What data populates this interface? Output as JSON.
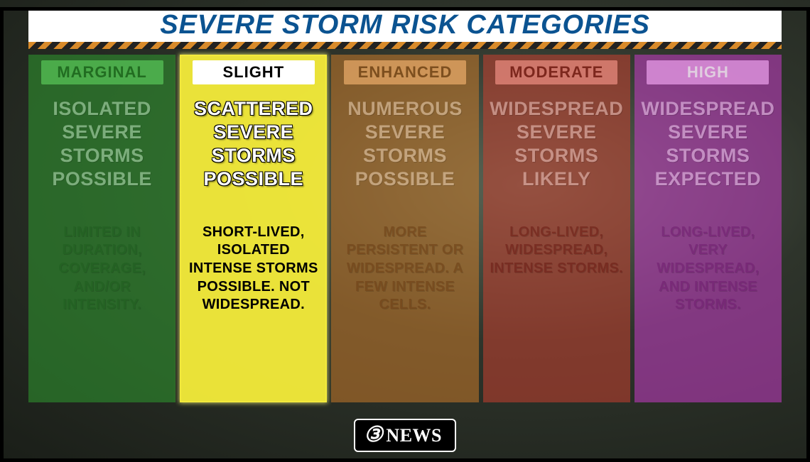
{
  "title": "SEVERE STORM RISK CATEGORIES",
  "highlighted_index": 1,
  "brand": {
    "icon": "③",
    "text": "NEWS"
  },
  "colors": {
    "title_color": "#0b5391",
    "stripe_a": "#d88a2a",
    "stripe_b": "#222222",
    "background_center": "#5a6555",
    "background_edge": "#1a1e18"
  },
  "categories": [
    {
      "name": "MARGINAL",
      "column_color": "#2f9a2f",
      "column_opacity": 0.55,
      "tab_bg": "#56c256",
      "tab_text_color": "#1f6f1f",
      "headline": "ISOLATED SEVERE STORMS POSSIBLE",
      "headline_color": "#bfe6bf",
      "desc": "LIMITED IN DURATION, COVERAGE, AND/OR INTENSITY.",
      "desc_color": "#1f5e1f",
      "highlighted": false
    },
    {
      "name": "SLIGHT",
      "column_color": "#f4ec3a",
      "column_opacity": 0.95,
      "tab_bg": "#ffffff",
      "tab_text_color": "#000000",
      "headline": "SCATTERED SEVERE STORMS POSSIBLE",
      "headline_color": "#ffffff",
      "desc": "SHORT-LIVED, ISOLATED INTENSE STORMS POSSIBLE. NOT WIDESPREAD.",
      "desc_color": "#000000",
      "highlighted": true
    },
    {
      "name": "ENHANCED",
      "column_color": "#c87a2a",
      "column_opacity": 0.55,
      "tab_bg": "#e6a867",
      "tab_text_color": "#7a4a1a",
      "headline": "NUMEROUS SEVERE STORMS POSSIBLE",
      "headline_color": "#f0d6b9",
      "desc": "MORE PERSISTENT OR WIDESPREAD. A FEW INTENSE CELLS.",
      "desc_color": "#6b3d13",
      "highlighted": false
    },
    {
      "name": "MODERATE",
      "column_color": "#c63f2f",
      "column_opacity": 0.55,
      "tab_bg": "#e88a7e",
      "tab_text_color": "#7a1f16",
      "headline": "WIDESPREAD SEVERE STORMS LIKELY",
      "headline_color": "#f2c9c2",
      "desc": "LONG-LIVED, WIDESPREAD, INTENSE STORMS.",
      "desc_color": "#6a1a12",
      "highlighted": false
    },
    {
      "name": "HIGH",
      "column_color": "#c93dc9",
      "column_opacity": 0.55,
      "tab_bg": "#e79be7",
      "tab_text_color": "#ffffff",
      "headline": "WIDESPREAD SEVERE STORMS EXPECTED",
      "headline_color": "#f3cff3",
      "desc": "LONG-LIVED, VERY WIDESPREAD, AND INTENSE STORMS.",
      "desc_color": "#6f1c6f",
      "highlighted": false
    }
  ]
}
